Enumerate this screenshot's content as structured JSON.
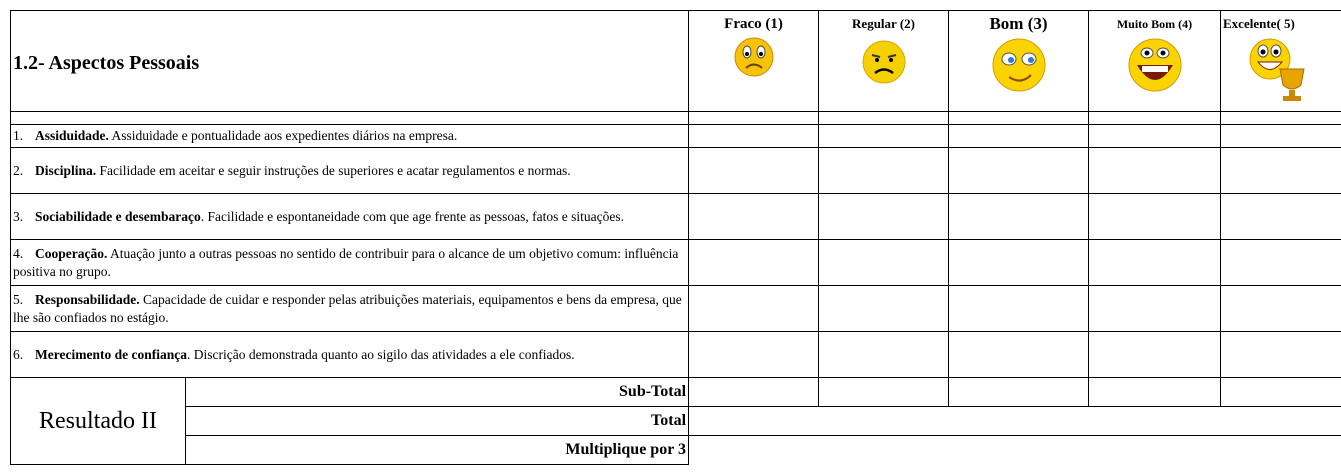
{
  "header": {
    "title": "1.2- Aspectos Pessoais",
    "columns": [
      "Fraco (1)",
      "Regular (2)",
      "Bom (3)",
      "Muito Bom (4)",
      "Excelente( 5)"
    ]
  },
  "rows": [
    {
      "number": "1.",
      "title": "Assiduidade.",
      "text": " Assiduidade e pontualidade aos expedientes diários na empresa."
    },
    {
      "number": "2.",
      "title": "Disciplina.",
      "text": " Facilidade em aceitar e seguir instruções de superiores e acatar regulamentos e normas."
    },
    {
      "number": "3.",
      "title": "Sociabilidade e desembaraço",
      "text": ". Facilidade e espontaneidade com que age frente as pessoas, fatos e situações."
    },
    {
      "number": "4.",
      "title": "Cooperação.",
      "text": " Atuação junto a outras pessoas no sentido de contribuir para o alcance de um objetivo comum: influência positiva no grupo."
    },
    {
      "number": "5.",
      "title": "Responsabilidade.",
      "text": " Capacidade de cuidar e responder pelas atribuições materiais, equipamentos e bens da empresa, que lhe são confiados no estágio."
    },
    {
      "number": "6.",
      "title": "Merecimento de confiança",
      "text": ". Discrição demonstrada quanto ao sigilo das atividades a ele confiados."
    }
  ],
  "footer": {
    "result_label": "Resultado II",
    "subtotal": "Sub-Total",
    "total": "Total",
    "multiply": "Multiplique por 3"
  }
}
